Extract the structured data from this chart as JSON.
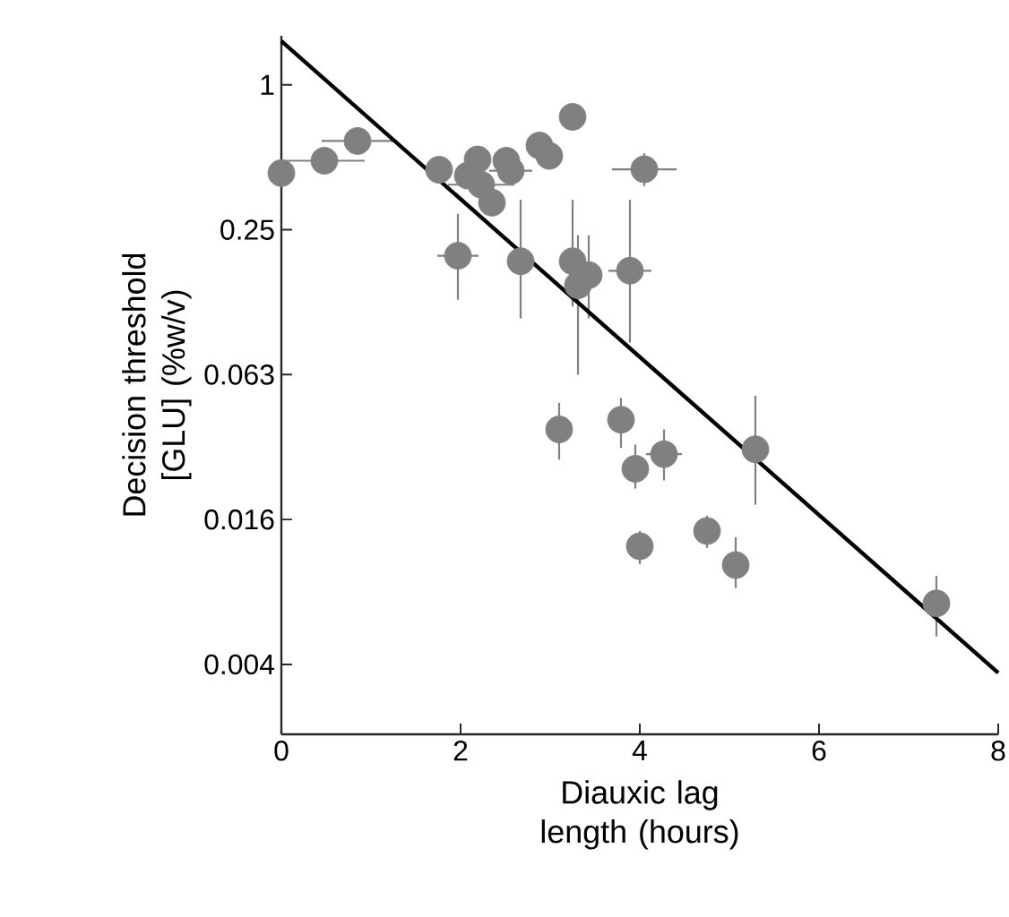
{
  "chart_data": {
    "type": "scatter",
    "xlabel": "Diauxic lag length (hours)",
    "ylabel": "Decision threshold [GLU] (%w/v)",
    "log": "y",
    "xlim": [
      0,
      8
    ],
    "ylim": [
      0.002,
      1.6
    ],
    "xticks": [
      0,
      2,
      4,
      6,
      8
    ],
    "yticks": [
      {
        "value": 0.00390625,
        "label": "0.004"
      },
      {
        "value": 0.015625,
        "label": "0.016"
      },
      {
        "value": 0.0625,
        "label": "0.063"
      },
      0.25,
      1
    ],
    "grid": false,
    "series": [
      {
        "marker": "circle",
        "color": "#808080",
        "x": [
          0,
          0.48,
          0.85,
          1.76,
          2.19,
          2.08,
          2.23,
          2.35,
          2.51,
          2.56,
          2.88,
          2.99,
          3.25,
          4.05,
          1.97,
          2.67,
          3.25,
          3.43,
          3.31,
          3.89,
          3.1,
          3.79,
          3.95,
          4.27,
          5.29,
          4.0,
          4.75,
          5.07,
          7.31
        ],
        "values": [
          0.43,
          0.484,
          0.585,
          0.444,
          0.49,
          0.42,
          0.385,
          0.324,
          0.484,
          0.44,
          0.56,
          0.507,
          0.737,
          0.446,
          0.195,
          0.185,
          0.185,
          0.162,
          0.147,
          0.169,
          0.037,
          0.0406,
          0.0254,
          0.0292,
          0.0306,
          0.0121,
          0.014,
          0.0101,
          0.007
        ],
        "errors": [
          null,
          null,
          null,
          null,
          null,
          null,
          null,
          null,
          null,
          null,
          null,
          null,
          null,
          [
            0.38,
            0.52
          ],
          [
            0.128,
            0.291
          ],
          [
            0.107,
            0.333
          ],
          [
            0.12,
            0.333
          ],
          [
            0.107,
            0.237
          ],
          [
            0.0625,
            0.237
          ],
          [
            0.085,
            0.333
          ],
          [
            0.0277,
            0.0477
          ],
          [
            0.031,
            0.05
          ],
          [
            0.021,
            0.032
          ],
          [
            0.0227,
            0.037
          ],
          [
            0.018,
            0.0511
          ],
          [
            0.0102,
            0.014
          ],
          [
            0.0119,
            0.0162
          ],
          [
            0.0081,
            0.0132
          ],
          [
            0.0051,
            0.0091
          ]
        ],
        "xerrors": [
          null,
          0.45,
          0.4,
          null,
          null,
          null,
          0.37,
          null,
          null,
          0.24,
          null,
          null,
          null,
          0.36,
          0.23,
          null,
          null,
          null,
          null,
          0.24,
          null,
          null,
          null,
          0.2,
          null,
          null,
          null,
          null,
          null
        ]
      },
      {
        "type": "line",
        "marker": "none",
        "color": "#000000",
        "x": [
          0,
          8
        ],
        "values": [
          1.52,
          0.0036
        ]
      }
    ]
  }
}
